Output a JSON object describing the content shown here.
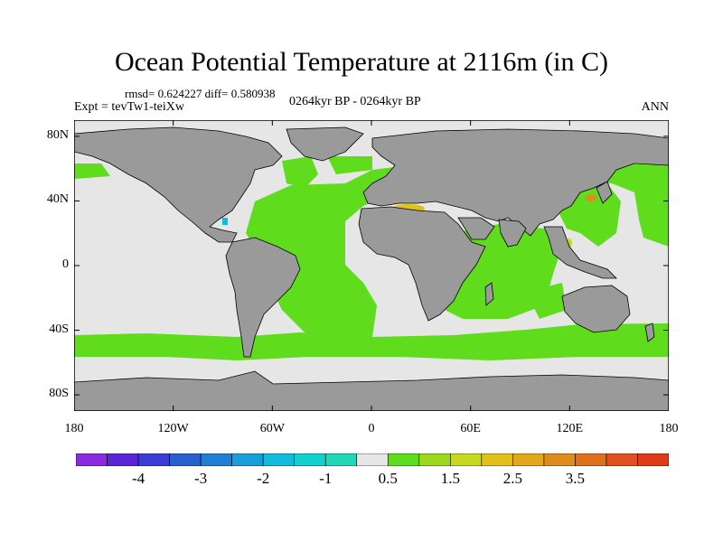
{
  "title": "Ocean Potential Temperature at 2116m (in C)",
  "stats": "rmsd= 0.624227 diff= 0.580938",
  "experiment": "Expt = tevTw1-teiXw",
  "period": "0264kyr BP - 0264kyr BP",
  "season": "ANN",
  "axes": {
    "y_ticks": [
      {
        "label": "80N",
        "lat": 80
      },
      {
        "label": "40N",
        "lat": 40
      },
      {
        "label": "0",
        "lat": 0
      },
      {
        "label": "40S",
        "lat": -40
      },
      {
        "label": "80S",
        "lat": -80
      }
    ],
    "x_ticks": [
      {
        "label": "180",
        "lon": -180
      },
      {
        "label": "120W",
        "lon": -120
      },
      {
        "label": "60W",
        "lon": -60
      },
      {
        "label": "0",
        "lon": 0
      },
      {
        "label": "60E",
        "lon": 60
      },
      {
        "label": "120E",
        "lon": 120
      },
      {
        "label": "180",
        "lon": 180
      }
    ],
    "lon_range": [
      -180,
      180
    ],
    "lat_range": [
      -90,
      90
    ]
  },
  "colors": {
    "land": "#9a9a9a",
    "near_zero": "#e6e6e6",
    "positive_small": "#5fdc1c",
    "coast": "#000000"
  },
  "colorbar": {
    "colors": [
      "#8a2be2",
      "#5a25d8",
      "#3b3bd6",
      "#2a5fd0",
      "#1e7fd6",
      "#1aa0d8",
      "#12bcdc",
      "#10d0d0",
      "#20d8b8",
      "#e6e6e6",
      "#5fdc1c",
      "#9ed81e",
      "#c8d81e",
      "#e2c01a",
      "#e0a81a",
      "#e08c1c",
      "#e0701c",
      "#e05020",
      "#e03a1a"
    ],
    "tick_labels": [
      {
        "label": "-4",
        "index": 1
      },
      {
        "label": "-3",
        "index": 3
      },
      {
        "label": "-2",
        "index": 5
      },
      {
        "label": "-1",
        "index": 7
      },
      {
        "label": "0.5",
        "index": 9
      },
      {
        "label": "1.5",
        "index": 11
      },
      {
        "label": "2.5",
        "index": 13
      },
      {
        "label": "3.5",
        "index": 15
      }
    ]
  }
}
